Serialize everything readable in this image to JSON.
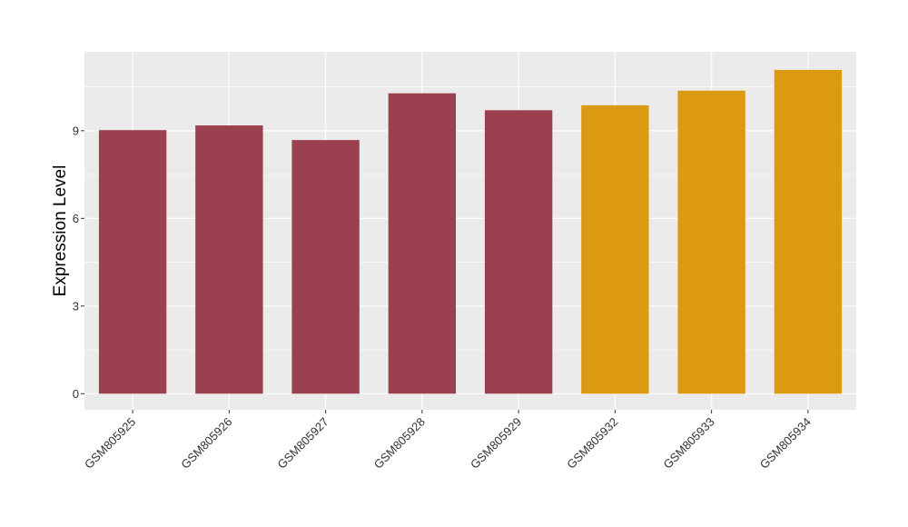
{
  "chart_data": {
    "type": "bar",
    "ylabel": "Expression Level",
    "xlabel": "",
    "categories": [
      "GSM805925",
      "GSM805926",
      "GSM805927",
      "GSM805928",
      "GSM805929",
      "GSM805932",
      "GSM805933",
      "GSM805934"
    ],
    "values": [
      9.02,
      9.18,
      8.68,
      10.28,
      9.7,
      9.87,
      10.37,
      11.08
    ],
    "bar_colors": [
      "#9A404E",
      "#9A404E",
      "#9A404E",
      "#9A404E",
      "#9A404E",
      "#DC9912",
      "#DC9912",
      "#DC9912"
    ],
    "ylim": [
      -0.55,
      11.7
    ],
    "yticks": [
      0,
      3,
      6,
      9
    ],
    "ytick_labels": [
      "0",
      "3",
      "6",
      "9"
    ],
    "grid": true,
    "panel_background": "#EBEBEB",
    "grid_color": "#FFFFFF"
  }
}
